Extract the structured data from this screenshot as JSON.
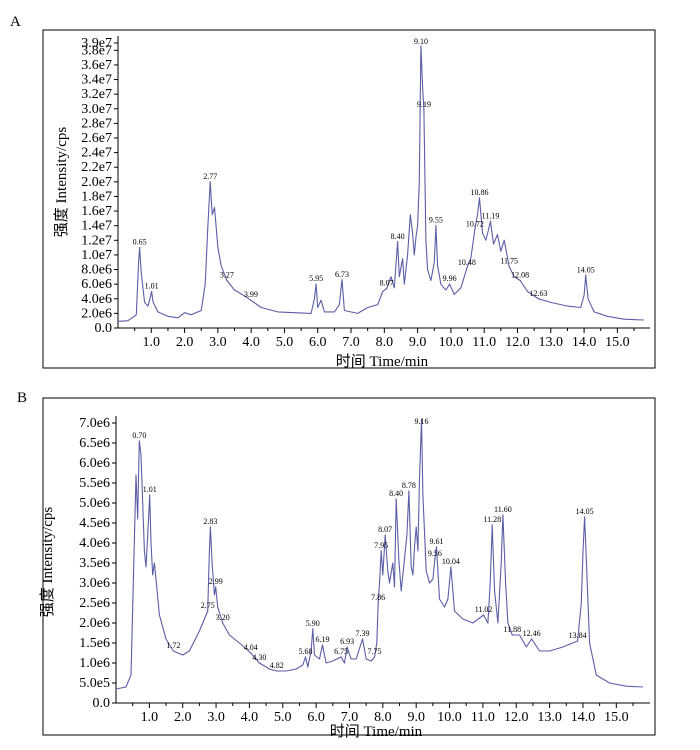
{
  "chart_data": [
    {
      "panel_label": "A",
      "type": "line",
      "xlabel": "时间  Time/min",
      "ylabel": "强度  Intensity/cps",
      "xlim": [
        0,
        15.8
      ],
      "ylim": [
        0,
        39000000
      ],
      "xticks": [
        "1.0",
        "2.0",
        "3.0",
        "4.0",
        "5.0",
        "6.0",
        "7.0",
        "8.0",
        "9.0",
        "10.0",
        "11.0",
        "12.0",
        "13.0",
        "14.0",
        "15.0"
      ],
      "yticks": [
        "0.0",
        "2.0e6",
        "4.0e6",
        "6.0e6",
        "8.0e6",
        "1.0e7",
        "1.2e7",
        "1.4e7",
        "1.6e7",
        "1.8e7",
        "2.0e7",
        "2.2e7",
        "2.4e7",
        "2.6e7",
        "2.8e7",
        "3.0e7",
        "3.2e7",
        "3.4e7",
        "3.6e7",
        "3.8e7",
        "3.9e7"
      ],
      "ytick_values": [
        0,
        2000000,
        4000000,
        6000000,
        8000000,
        10000000,
        12000000,
        14000000,
        16000000,
        18000000,
        20000000,
        22000000,
        24000000,
        26000000,
        28000000,
        30000000,
        32000000,
        34000000,
        36000000,
        38000000,
        39000000
      ],
      "series_color": "#5b5ea6",
      "peaks": [
        {
          "label": "0.65",
          "x": 0.65,
          "y": 11000000
        },
        {
          "label": "1.01",
          "x": 1.01,
          "y": 5000000
        },
        {
          "label": "2.77",
          "x": 2.77,
          "y": 20000000
        },
        {
          "label": "3.27",
          "x": 3.27,
          "y": 6500000
        },
        {
          "label": "3.99",
          "x": 3.99,
          "y": 3800000
        },
        {
          "label": "5.95",
          "x": 5.95,
          "y": 6000000
        },
        {
          "label": "6.73",
          "x": 6.73,
          "y": 6600000
        },
        {
          "label": "8.07",
          "x": 8.07,
          "y": 5400000
        },
        {
          "label": "8.40",
          "x": 8.4,
          "y": 11800000
        },
        {
          "label": "9.10",
          "x": 9.1,
          "y": 38600000
        },
        {
          "label": "9.19",
          "x": 9.19,
          "y": 29800000
        },
        {
          "label": "9.55",
          "x": 9.55,
          "y": 14000000
        },
        {
          "label": "9.96",
          "x": 9.96,
          "y": 6000000
        },
        {
          "label": "10.48",
          "x": 10.48,
          "y": 8200000
        },
        {
          "label": "10.72",
          "x": 10.72,
          "y": 13500000
        },
        {
          "label": "10.86",
          "x": 10.86,
          "y": 17800000
        },
        {
          "label": "11.19",
          "x": 11.19,
          "y": 14600000
        },
        {
          "label": "11.75",
          "x": 11.75,
          "y": 8400000
        },
        {
          "label": "12.08",
          "x": 12.08,
          "y": 6500000
        },
        {
          "label": "12.63",
          "x": 12.63,
          "y": 4000000
        },
        {
          "label": "14.05",
          "x": 14.05,
          "y": 7200000
        }
      ],
      "trace": [
        [
          0.0,
          900000
        ],
        [
          0.3,
          1000000
        ],
        [
          0.55,
          1800000
        ],
        [
          0.62,
          9000000
        ],
        [
          0.65,
          11000000
        ],
        [
          0.7,
          7500000
        ],
        [
          0.8,
          3500000
        ],
        [
          0.9,
          3000000
        ],
        [
          0.97,
          4200000
        ],
        [
          1.01,
          5000000
        ],
        [
          1.05,
          3600000
        ],
        [
          1.2,
          2200000
        ],
        [
          1.5,
          1600000
        ],
        [
          1.8,
          1400000
        ],
        [
          2.0,
          2100000
        ],
        [
          2.2,
          1800000
        ],
        [
          2.5,
          2400000
        ],
        [
          2.62,
          6000000
        ],
        [
          2.7,
          14000000
        ],
        [
          2.77,
          20000000
        ],
        [
          2.83,
          15500000
        ],
        [
          2.9,
          16500000
        ],
        [
          3.0,
          11000000
        ],
        [
          3.1,
          8500000
        ],
        [
          3.27,
          6500000
        ],
        [
          3.5,
          5200000
        ],
        [
          3.8,
          4400000
        ],
        [
          3.99,
          3800000
        ],
        [
          4.3,
          2800000
        ],
        [
          4.8,
          2200000
        ],
        [
          5.3,
          2100000
        ],
        [
          5.8,
          2000000
        ],
        [
          5.9,
          4000000
        ],
        [
          5.95,
          6000000
        ],
        [
          6.0,
          2800000
        ],
        [
          6.1,
          3800000
        ],
        [
          6.2,
          2200000
        ],
        [
          6.5,
          2200000
        ],
        [
          6.65,
          3200000
        ],
        [
          6.73,
          6600000
        ],
        [
          6.8,
          2400000
        ],
        [
          7.2,
          2000000
        ],
        [
          7.5,
          2800000
        ],
        [
          7.8,
          3200000
        ],
        [
          7.95,
          5000000
        ],
        [
          8.07,
          5400000
        ],
        [
          8.2,
          7000000
        ],
        [
          8.3,
          5500000
        ],
        [
          8.4,
          11800000
        ],
        [
          8.45,
          7000000
        ],
        [
          8.55,
          9500000
        ],
        [
          8.6,
          6000000
        ],
        [
          8.7,
          10000000
        ],
        [
          8.78,
          15500000
        ],
        [
          8.85,
          13000000
        ],
        [
          8.9,
          10000000
        ],
        [
          8.95,
          12500000
        ],
        [
          9.0,
          14000000
        ],
        [
          9.05,
          20000000
        ],
        [
          9.1,
          38600000
        ],
        [
          9.15,
          33000000
        ],
        [
          9.19,
          29800000
        ],
        [
          9.25,
          12000000
        ],
        [
          9.3,
          8000000
        ],
        [
          9.4,
          6500000
        ],
        [
          9.5,
          9000000
        ],
        [
          9.55,
          14000000
        ],
        [
          9.6,
          8500000
        ],
        [
          9.7,
          6000000
        ],
        [
          9.85,
          5200000
        ],
        [
          9.96,
          6000000
        ],
        [
          10.1,
          4600000
        ],
        [
          10.3,
          5500000
        ],
        [
          10.48,
          8200000
        ],
        [
          10.6,
          9600000
        ],
        [
          10.72,
          13500000
        ],
        [
          10.8,
          15500000
        ],
        [
          10.86,
          17800000
        ],
        [
          10.95,
          13000000
        ],
        [
          11.05,
          12000000
        ],
        [
          11.19,
          14600000
        ],
        [
          11.28,
          11500000
        ],
        [
          11.4,
          12800000
        ],
        [
          11.5,
          10500000
        ],
        [
          11.6,
          12000000
        ],
        [
          11.75,
          8400000
        ],
        [
          11.9,
          7000000
        ],
        [
          12.08,
          6500000
        ],
        [
          12.3,
          5000000
        ],
        [
          12.63,
          4000000
        ],
        [
          13.0,
          3500000
        ],
        [
          13.5,
          3000000
        ],
        [
          13.9,
          2800000
        ],
        [
          14.0,
          4500000
        ],
        [
          14.05,
          7200000
        ],
        [
          14.12,
          4000000
        ],
        [
          14.3,
          2200000
        ],
        [
          14.7,
          1600000
        ],
        [
          15.2,
          1200000
        ],
        [
          15.8,
          1100000
        ]
      ]
    },
    {
      "panel_label": "B",
      "type": "line",
      "xlabel": "时间  Time/min",
      "ylabel": "强度  Intensity/cps",
      "xlim": [
        0,
        15.8
      ],
      "ylim": [
        0,
        7000000
      ],
      "xticks": [
        "1.0",
        "2.0",
        "3.0",
        "4.0",
        "5.0",
        "6.0",
        "7.0",
        "8.0",
        "9.0",
        "10.0",
        "11.0",
        "12.0",
        "13.0",
        "14.0",
        "15.0"
      ],
      "yticks": [
        "0.0",
        "5.0e5",
        "1.0e6",
        "1.5e6",
        "2.0e6",
        "2.5e6",
        "3.0e6",
        "3.5e6",
        "4.0e6",
        "4.5e6",
        "5.0e6",
        "5.5e6",
        "6.0e6",
        "6.5e6",
        "7.0e6"
      ],
      "ytick_values": [
        0,
        500000,
        1000000,
        1500000,
        2000000,
        2500000,
        3000000,
        3500000,
        4000000,
        4500000,
        5000000,
        5500000,
        6000000,
        6500000,
        7000000
      ],
      "series_color": "#5b5ea6",
      "peaks": [
        {
          "label": "0.70",
          "x": 0.7,
          "y": 6550000
        },
        {
          "label": "1.01",
          "x": 1.01,
          "y": 5200000
        },
        {
          "label": "1.72",
          "x": 1.72,
          "y": 1300000
        },
        {
          "label": "2.75",
          "x": 2.75,
          "y": 2300000
        },
        {
          "label": "2.83",
          "x": 2.83,
          "y": 4400000
        },
        {
          "label": "2.99",
          "x": 2.99,
          "y": 2900000
        },
        {
          "label": "3.20",
          "x": 3.2,
          "y": 2000000
        },
        {
          "label": "4.04",
          "x": 4.04,
          "y": 1250000
        },
        {
          "label": "4.30",
          "x": 4.3,
          "y": 1000000
        },
        {
          "label": "4.82",
          "x": 4.82,
          "y": 800000
        },
        {
          "label": "5.68",
          "x": 5.68,
          "y": 1150000
        },
        {
          "label": "5.90",
          "x": 5.9,
          "y": 1850000
        },
        {
          "label": "6.19",
          "x": 6.19,
          "y": 1450000
        },
        {
          "label": "6.75",
          "x": 6.75,
          "y": 1150000
        },
        {
          "label": "6.93",
          "x": 6.93,
          "y": 1400000
        },
        {
          "label": "7.39",
          "x": 7.39,
          "y": 1600000
        },
        {
          "label": "7.75",
          "x": 7.75,
          "y": 1150000
        },
        {
          "label": "7.86",
          "x": 7.86,
          "y": 2500000
        },
        {
          "label": "7.95",
          "x": 7.95,
          "y": 3800000
        },
        {
          "label": "8.07",
          "x": 8.07,
          "y": 4200000
        },
        {
          "label": "8.40",
          "x": 8.4,
          "y": 5100000
        },
        {
          "label": "8.78",
          "x": 8.78,
          "y": 5300000
        },
        {
          "label": "9.16",
          "x": 9.16,
          "y": 7100000
        },
        {
          "label": "9.61",
          "x": 9.61,
          "y": 3900000
        },
        {
          "label": "9.56",
          "x": 9.56,
          "y": 3600000
        },
        {
          "label": "10.04",
          "x": 10.04,
          "y": 3400000
        },
        {
          "label": "11.02",
          "x": 11.02,
          "y": 2200000
        },
        {
          "label": "11.28",
          "x": 11.28,
          "y": 4450000
        },
        {
          "label": "11.60",
          "x": 11.6,
          "y": 4700000
        },
        {
          "label": "11.88",
          "x": 11.88,
          "y": 1700000
        },
        {
          "label": "12.46",
          "x": 12.46,
          "y": 1600000
        },
        {
          "label": "13.84",
          "x": 13.84,
          "y": 1550000
        },
        {
          "label": "14.05",
          "x": 14.05,
          "y": 4650000
        }
      ],
      "trace": [
        [
          0.0,
          350000
        ],
        [
          0.3,
          400000
        ],
        [
          0.45,
          700000
        ],
        [
          0.55,
          4000000
        ],
        [
          0.6,
          5700000
        ],
        [
          0.65,
          4600000
        ],
        [
          0.7,
          6550000
        ],
        [
          0.75,
          6200000
        ],
        [
          0.8,
          5000000
        ],
        [
          0.85,
          3800000
        ],
        [
          0.9,
          3400000
        ],
        [
          0.95,
          4200000
        ],
        [
          1.01,
          5200000
        ],
        [
          1.05,
          4000000
        ],
        [
          1.1,
          3200000
        ],
        [
          1.15,
          3500000
        ],
        [
          1.2,
          3100000
        ],
        [
          1.3,
          2200000
        ],
        [
          1.5,
          1600000
        ],
        [
          1.72,
          1300000
        ],
        [
          2.0,
          1200000
        ],
        [
          2.2,
          1300000
        ],
        [
          2.5,
          1800000
        ],
        [
          2.65,
          2100000
        ],
        [
          2.75,
          2300000
        ],
        [
          2.8,
          3800000
        ],
        [
          2.83,
          4400000
        ],
        [
          2.88,
          3500000
        ],
        [
          2.95,
          2700000
        ],
        [
          2.99,
          2900000
        ],
        [
          3.05,
          2400000
        ],
        [
          3.2,
          2000000
        ],
        [
          3.4,
          1700000
        ],
        [
          3.7,
          1500000
        ],
        [
          4.04,
          1250000
        ],
        [
          4.3,
          1000000
        ],
        [
          4.6,
          850000
        ],
        [
          4.82,
          800000
        ],
        [
          5.1,
          800000
        ],
        [
          5.4,
          850000
        ],
        [
          5.6,
          950000
        ],
        [
          5.68,
          1150000
        ],
        [
          5.75,
          900000
        ],
        [
          5.85,
          1300000
        ],
        [
          5.9,
          1850000
        ],
        [
          5.95,
          1200000
        ],
        [
          6.1,
          1100000
        ],
        [
          6.19,
          1450000
        ],
        [
          6.3,
          1000000
        ],
        [
          6.5,
          1050000
        ],
        [
          6.75,
          1150000
        ],
        [
          6.85,
          1000000
        ],
        [
          6.93,
          1400000
        ],
        [
          7.05,
          1100000
        ],
        [
          7.2,
          1100000
        ],
        [
          7.39,
          1600000
        ],
        [
          7.5,
          1100000
        ],
        [
          7.65,
          1050000
        ],
        [
          7.75,
          1150000
        ],
        [
          7.82,
          1500000
        ],
        [
          7.86,
          2500000
        ],
        [
          7.9,
          3000000
        ],
        [
          7.95,
          3800000
        ],
        [
          8.0,
          3200000
        ],
        [
          8.07,
          4200000
        ],
        [
          8.15,
          3300000
        ],
        [
          8.2,
          3000000
        ],
        [
          8.3,
          3500000
        ],
        [
          8.35,
          2900000
        ],
        [
          8.4,
          5100000
        ],
        [
          8.48,
          3600000
        ],
        [
          8.55,
          2800000
        ],
        [
          8.65,
          3600000
        ],
        [
          8.72,
          4200000
        ],
        [
          8.78,
          5300000
        ],
        [
          8.85,
          3400000
        ],
        [
          8.9,
          3200000
        ],
        [
          8.95,
          3900000
        ],
        [
          9.0,
          4400000
        ],
        [
          9.05,
          3800000
        ],
        [
          9.1,
          5600000
        ],
        [
          9.16,
          7100000
        ],
        [
          9.2,
          5200000
        ],
        [
          9.3,
          3300000
        ],
        [
          9.4,
          3000000
        ],
        [
          9.5,
          3100000
        ],
        [
          9.56,
          3600000
        ],
        [
          9.61,
          3900000
        ],
        [
          9.7,
          2600000
        ],
        [
          9.85,
          2400000
        ],
        [
          9.95,
          2600000
        ],
        [
          10.04,
          3400000
        ],
        [
          10.15,
          2300000
        ],
        [
          10.4,
          2100000
        ],
        [
          10.7,
          2000000
        ],
        [
          11.02,
          2200000
        ],
        [
          11.15,
          2000000
        ],
        [
          11.22,
          3000000
        ],
        [
          11.28,
          4450000
        ],
        [
          11.35,
          2800000
        ],
        [
          11.45,
          2000000
        ],
        [
          11.55,
          3500000
        ],
        [
          11.6,
          4700000
        ],
        [
          11.68,
          3000000
        ],
        [
          11.75,
          2000000
        ],
        [
          11.88,
          1700000
        ],
        [
          12.1,
          1700000
        ],
        [
          12.3,
          1400000
        ],
        [
          12.46,
          1600000
        ],
        [
          12.7,
          1300000
        ],
        [
          13.0,
          1300000
        ],
        [
          13.4,
          1400000
        ],
        [
          13.84,
          1550000
        ],
        [
          13.95,
          2500000
        ],
        [
          14.0,
          3800000
        ],
        [
          14.05,
          4650000
        ],
        [
          14.1,
          3600000
        ],
        [
          14.2,
          1500000
        ],
        [
          14.4,
          700000
        ],
        [
          14.8,
          500000
        ],
        [
          15.3,
          420000
        ],
        [
          15.8,
          400000
        ]
      ]
    }
  ]
}
